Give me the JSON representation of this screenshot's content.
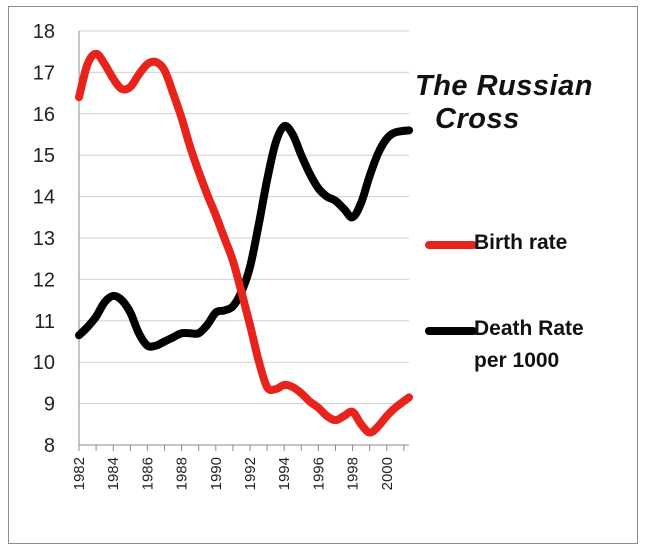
{
  "chart_data": {
    "type": "line",
    "title": [
      "The Russian",
      "Cross"
    ],
    "xlabel": "",
    "ylabel": "",
    "xlim": [
      1982,
      2001.3
    ],
    "ylim": [
      8,
      18
    ],
    "x_ticks": [
      "1982",
      "1984",
      "1986",
      "1988",
      "1990",
      "1992",
      "1994",
      "1996",
      "1998",
      "2000"
    ],
    "y_ticks": [
      "8",
      "9",
      "10",
      "11",
      "12",
      "13",
      "14",
      "15",
      "16",
      "17",
      "18"
    ],
    "grid": "horizontal",
    "legend_position": "right",
    "series": [
      {
        "name": "Birth rate",
        "color": "#e8231b",
        "points": [
          [
            1982,
            16.4
          ],
          [
            1982.5,
            17.2
          ],
          [
            1983,
            17.45
          ],
          [
            1983.5,
            17.2
          ],
          [
            1984,
            16.85
          ],
          [
            1984.5,
            16.6
          ],
          [
            1985,
            16.65
          ],
          [
            1985.5,
            16.95
          ],
          [
            1986,
            17.2
          ],
          [
            1986.5,
            17.25
          ],
          [
            1987,
            17.05
          ],
          [
            1987.5,
            16.5
          ],
          [
            1988,
            15.9
          ],
          [
            1988.5,
            15.2
          ],
          [
            1989,
            14.6
          ],
          [
            1989.5,
            14.05
          ],
          [
            1990,
            13.55
          ],
          [
            1990.5,
            13.0
          ],
          [
            1991,
            12.45
          ],
          [
            1991.5,
            11.7
          ],
          [
            1992,
            10.9
          ],
          [
            1992.5,
            10.05
          ],
          [
            1993,
            9.4
          ],
          [
            1993.5,
            9.35
          ],
          [
            1994,
            9.45
          ],
          [
            1994.5,
            9.4
          ],
          [
            1995,
            9.25
          ],
          [
            1995.5,
            9.05
          ],
          [
            1996,
            8.9
          ],
          [
            1996.5,
            8.7
          ],
          [
            1997,
            8.6
          ],
          [
            1997.5,
            8.7
          ],
          [
            1998,
            8.8
          ],
          [
            1998.5,
            8.5
          ],
          [
            1999,
            8.3
          ],
          [
            1999.5,
            8.45
          ],
          [
            2000,
            8.7
          ],
          [
            2000.5,
            8.9
          ],
          [
            2001.3,
            9.15
          ]
        ]
      },
      {
        "name": "Death Rate per 1000",
        "name_lines": [
          "Death Rate",
          "per 1000"
        ],
        "color": "#000000",
        "points": [
          [
            1982,
            10.65
          ],
          [
            1982.5,
            10.85
          ],
          [
            1983,
            11.1
          ],
          [
            1983.5,
            11.45
          ],
          [
            1984,
            11.6
          ],
          [
            1984.5,
            11.5
          ],
          [
            1985,
            11.2
          ],
          [
            1985.5,
            10.7
          ],
          [
            1986,
            10.4
          ],
          [
            1986.5,
            10.4
          ],
          [
            1987,
            10.5
          ],
          [
            1987.5,
            10.6
          ],
          [
            1988,
            10.7
          ],
          [
            1988.5,
            10.7
          ],
          [
            1989,
            10.7
          ],
          [
            1989.5,
            10.9
          ],
          [
            1990,
            11.2
          ],
          [
            1990.5,
            11.25
          ],
          [
            1991,
            11.35
          ],
          [
            1991.5,
            11.7
          ],
          [
            1992,
            12.3
          ],
          [
            1992.5,
            13.3
          ],
          [
            1993,
            14.4
          ],
          [
            1993.5,
            15.3
          ],
          [
            1994,
            15.7
          ],
          [
            1994.5,
            15.5
          ],
          [
            1995,
            15.0
          ],
          [
            1995.5,
            14.55
          ],
          [
            1996,
            14.2
          ],
          [
            1996.5,
            14.0
          ],
          [
            1997,
            13.9
          ],
          [
            1997.5,
            13.7
          ],
          [
            1998,
            13.5
          ],
          [
            1998.5,
            13.85
          ],
          [
            1999,
            14.5
          ],
          [
            1999.5,
            15.05
          ],
          [
            2000,
            15.4
          ],
          [
            2000.5,
            15.55
          ],
          [
            2001.3,
            15.6
          ]
        ]
      }
    ]
  }
}
